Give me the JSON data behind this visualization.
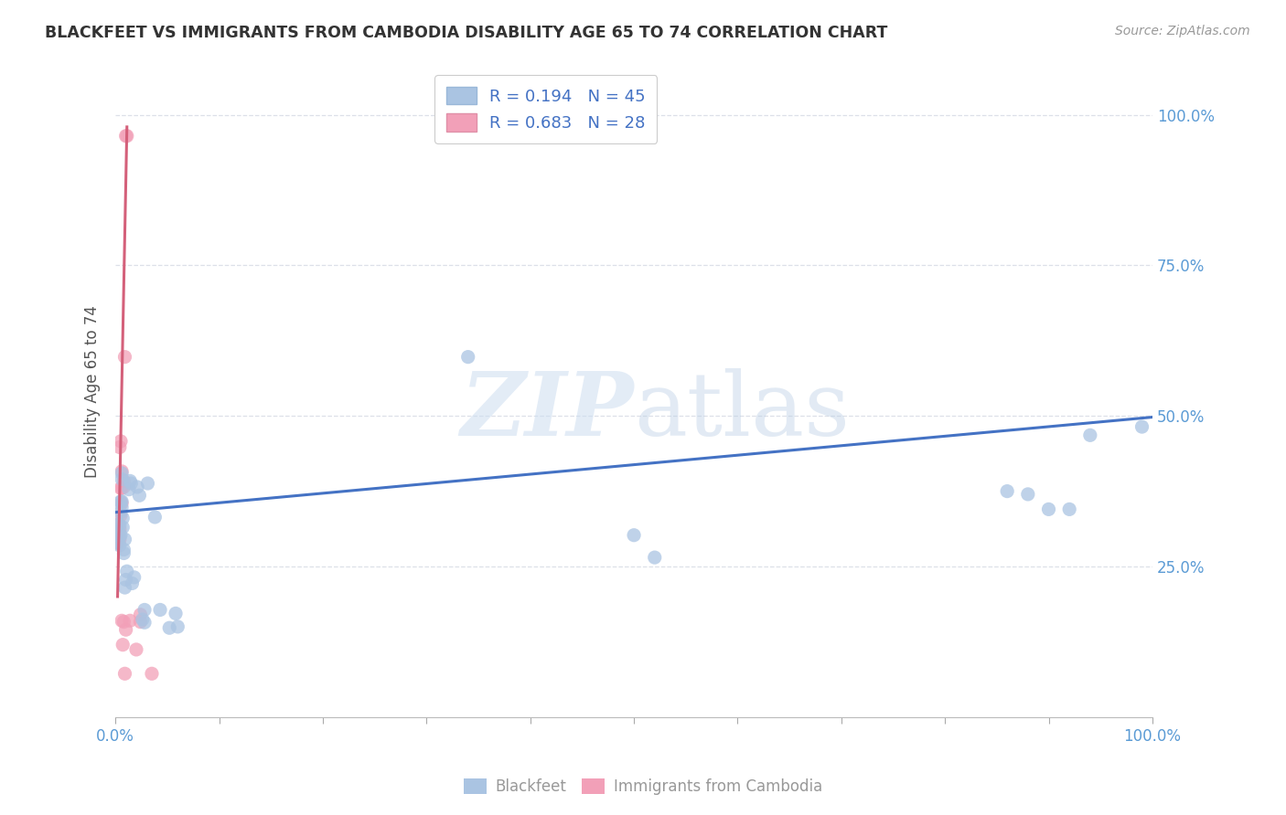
{
  "title": "BLACKFEET VS IMMIGRANTS FROM CAMBODIA DISABILITY AGE 65 TO 74 CORRELATION CHART",
  "source": "Source: ZipAtlas.com",
  "ylabel": "Disability Age 65 to 74",
  "legend_blue_r": "R = 0.194",
  "legend_blue_n": "N = 45",
  "legend_pink_r": "R = 0.683",
  "legend_pink_n": "N = 28",
  "ytick_values": [
    0.25,
    0.5,
    0.75,
    1.0
  ],
  "ytick_labels": [
    "25.0%",
    "50.0%",
    "75.0%",
    "100.0%"
  ],
  "blue_fill_color": "#aac4e2",
  "pink_fill_color": "#f2a0b8",
  "blue_line_color": "#4472c4",
  "pink_line_color": "#d4607a",
  "blue_scatter": [
    [
      0.002,
      0.29
    ],
    [
      0.002,
      0.31
    ],
    [
      0.003,
      0.305
    ],
    [
      0.003,
      0.32
    ],
    [
      0.004,
      0.285
    ],
    [
      0.004,
      0.3
    ],
    [
      0.004,
      0.318
    ],
    [
      0.005,
      0.34
    ],
    [
      0.005,
      0.358
    ],
    [
      0.005,
      0.302
    ],
    [
      0.006,
      0.348
    ],
    [
      0.006,
      0.358
    ],
    [
      0.006,
      0.395
    ],
    [
      0.006,
      0.405
    ],
    [
      0.007,
      0.33
    ],
    [
      0.007,
      0.315
    ],
    [
      0.008,
      0.278
    ],
    [
      0.008,
      0.272
    ],
    [
      0.009,
      0.215
    ],
    [
      0.009,
      0.295
    ],
    [
      0.01,
      0.228
    ],
    [
      0.011,
      0.242
    ],
    [
      0.013,
      0.378
    ],
    [
      0.014,
      0.392
    ],
    [
      0.015,
      0.388
    ],
    [
      0.016,
      0.222
    ],
    [
      0.018,
      0.232
    ],
    [
      0.021,
      0.382
    ],
    [
      0.023,
      0.368
    ],
    [
      0.026,
      0.162
    ],
    [
      0.028,
      0.178
    ],
    [
      0.028,
      0.157
    ],
    [
      0.031,
      0.388
    ],
    [
      0.038,
      0.332
    ],
    [
      0.043,
      0.178
    ],
    [
      0.052,
      0.148
    ],
    [
      0.058,
      0.172
    ],
    [
      0.06,
      0.15
    ],
    [
      0.34,
      0.598
    ],
    [
      0.5,
      0.302
    ],
    [
      0.52,
      0.265
    ],
    [
      0.86,
      0.375
    ],
    [
      0.88,
      0.37
    ],
    [
      0.9,
      0.345
    ],
    [
      0.92,
      0.345
    ],
    [
      0.94,
      0.468
    ],
    [
      0.99,
      0.482
    ]
  ],
  "pink_scatter": [
    [
      0.003,
      0.288
    ],
    [
      0.003,
      0.298
    ],
    [
      0.003,
      0.308
    ],
    [
      0.003,
      0.32
    ],
    [
      0.004,
      0.448
    ],
    [
      0.004,
      0.312
    ],
    [
      0.004,
      0.295
    ],
    [
      0.005,
      0.38
    ],
    [
      0.005,
      0.458
    ],
    [
      0.005,
      0.335
    ],
    [
      0.006,
      0.38
    ],
    [
      0.006,
      0.408
    ],
    [
      0.006,
      0.355
    ],
    [
      0.006,
      0.16
    ],
    [
      0.007,
      0.12
    ],
    [
      0.008,
      0.158
    ],
    [
      0.008,
      0.382
    ],
    [
      0.008,
      0.392
    ],
    [
      0.009,
      0.598
    ],
    [
      0.009,
      0.072
    ],
    [
      0.01,
      0.145
    ],
    [
      0.01,
      0.965
    ],
    [
      0.011,
      0.965
    ],
    [
      0.014,
      0.16
    ],
    [
      0.02,
      0.112
    ],
    [
      0.024,
      0.158
    ],
    [
      0.024,
      0.17
    ],
    [
      0.035,
      0.072
    ]
  ],
  "blue_line_x": [
    0.0,
    1.0
  ],
  "blue_line_y": [
    0.34,
    0.498
  ],
  "pink_line_x": [
    0.002,
    0.011
  ],
  "pink_line_y": [
    0.2,
    0.98
  ],
  "xmin": 0.0,
  "xmax": 1.0,
  "ymin": 0.0,
  "ymax": 1.08,
  "title_fontsize": 12.5,
  "axis_label_fontsize": 12,
  "tick_fontsize": 12,
  "legend_fontsize": 13,
  "scatter_size": 120,
  "scatter_alpha": 0.75,
  "grid_color": "#dde0e8",
  "axis_label_color": "#555555",
  "tick_color": "#5b9bd5",
  "title_color": "#333333",
  "source_color": "#999999"
}
